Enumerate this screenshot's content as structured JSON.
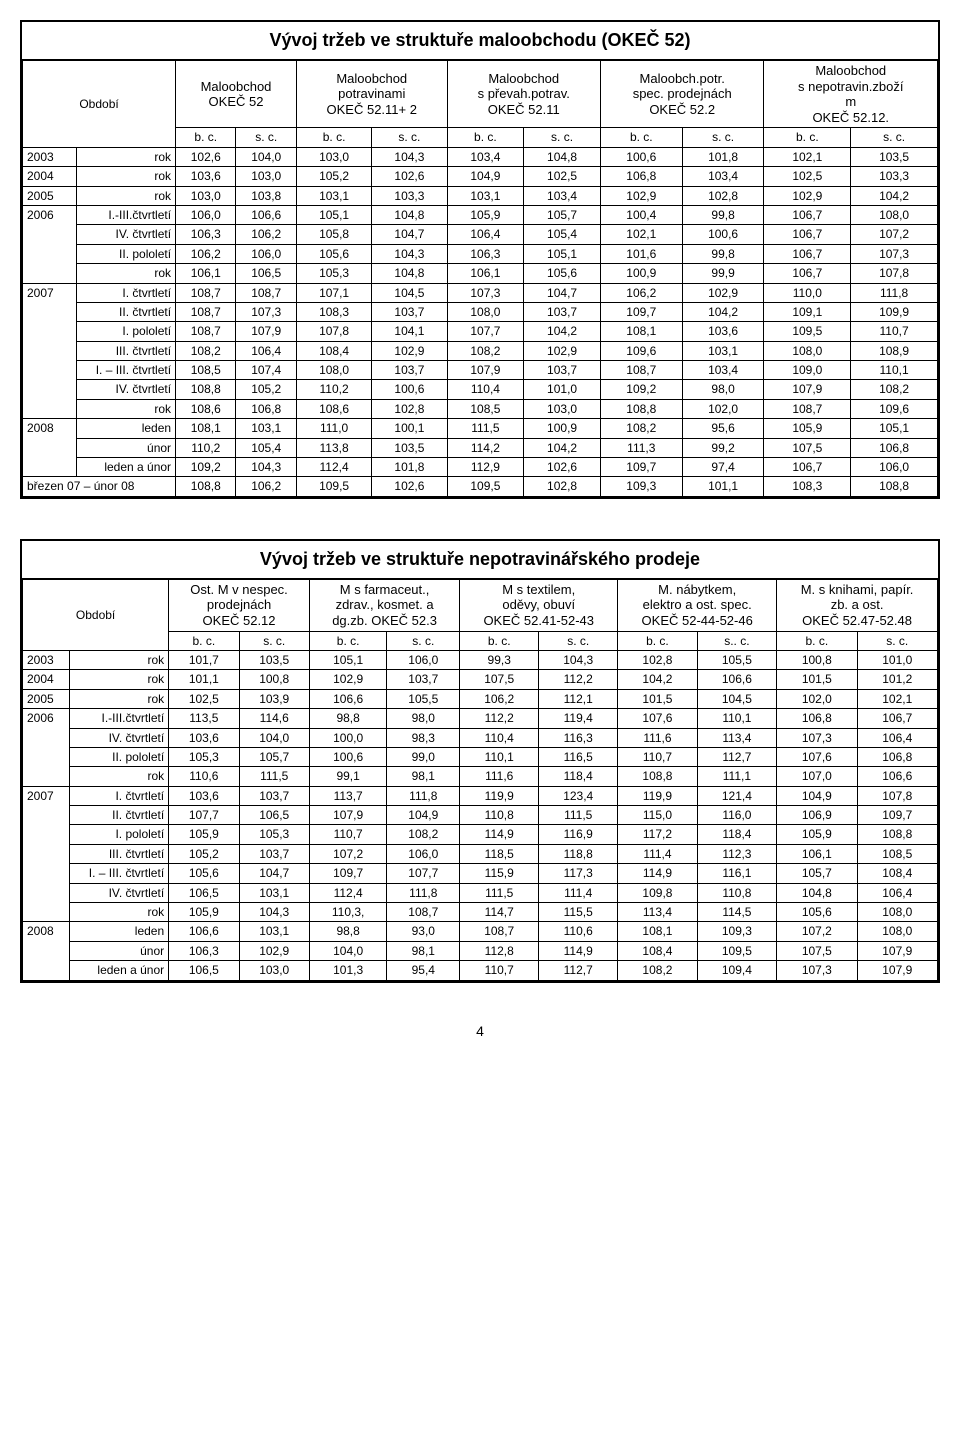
{
  "table1": {
    "title": "Vývoj tržeb ve struktuře maloobchodu (OKEČ 52)",
    "period_label": "Období",
    "groups": [
      {
        "l1": "Maloobchod",
        "l2": "OKEČ 52",
        "l3": ""
      },
      {
        "l1": "Maloobchod",
        "l2": "potravinami",
        "l3": "OKEČ 52.11+ 2"
      },
      {
        "l1": "Maloobchod",
        "l2": "s převah.potrav.",
        "l3": "OKEČ 52.11"
      },
      {
        "l1": "Maloobch.potr.",
        "l2": "spec. prodejnách",
        "l3": "OKEČ 52.2"
      },
      {
        "l1": "Maloobchod",
        "l2": "s nepotravin.zboží",
        "l3": "m",
        "l4": "OKEČ 52.12."
      }
    ],
    "subcols": [
      "b. c.",
      "s. c.",
      "b. c.",
      "s. c.",
      "b. c.",
      "s. c.",
      "b. c.",
      "s. c.",
      "b. c.",
      "s. c."
    ],
    "rows": [
      {
        "p": "2003",
        "s": "rok",
        "v": [
          "102,6",
          "104,0",
          "103,0",
          "104,3",
          "103,4",
          "104,8",
          "100,6",
          "101,8",
          "102,1",
          "103,5"
        ]
      },
      {
        "p": "2004",
        "s": "rok",
        "v": [
          "103,6",
          "103,0",
          "105,2",
          "102,6",
          "104,9",
          "102,5",
          "106,8",
          "103,4",
          "102,5",
          "103,3"
        ]
      },
      {
        "p": "2005",
        "s": "rok",
        "v": [
          "103,0",
          "103,8",
          "103,1",
          "103,3",
          "103,1",
          "103,4",
          "102,9",
          "102,8",
          "102,9",
          "104,2"
        ]
      },
      {
        "p": "2006",
        "s": "I.-III.čtvrtletí",
        "v": [
          "106,0",
          "106,6",
          "105,1",
          "104,8",
          "105,9",
          "105,7",
          "100,4",
          "99,8",
          "106,7",
          "108,0"
        ],
        "span": 4
      },
      {
        "p": "",
        "s": "IV. čtvrtletí",
        "v": [
          "106,3",
          "106,2",
          "105,8",
          "104,7",
          "106,4",
          "105,4",
          "102,1",
          "100,6",
          "106,7",
          "107,2"
        ]
      },
      {
        "p": "",
        "s": "II. pololetí",
        "v": [
          "106,2",
          "106,0",
          "105,6",
          "104,3",
          "106,3",
          "105,1",
          "101,6",
          "99,8",
          "106,7",
          "107,3"
        ]
      },
      {
        "p": "",
        "s": "rok",
        "v": [
          "106,1",
          "106,5",
          "105,3",
          "104,8",
          "106,1",
          "105,6",
          "100,9",
          "99,9",
          "106,7",
          "107,8"
        ]
      },
      {
        "p": "2007",
        "s": "I. čtvrtletí",
        "v": [
          "108,7",
          "108,7",
          "107,1",
          "104,5",
          "107,3",
          "104,7",
          "106,2",
          "102,9",
          "110,0",
          "111,8"
        ],
        "span": 7
      },
      {
        "p": "",
        "s": "II. čtvrtletí",
        "v": [
          "108,7",
          "107,3",
          "108,3",
          "103,7",
          "108,0",
          "103,7",
          "109,7",
          "104,2",
          "109,1",
          "109,9"
        ]
      },
      {
        "p": "",
        "s": "I. pololetí",
        "v": [
          "108,7",
          "107,9",
          "107,8",
          "104,1",
          "107,7",
          "104,2",
          "108,1",
          "103,6",
          "109,5",
          "110,7"
        ]
      },
      {
        "p": "",
        "s": "III. čtvrtletí",
        "v": [
          "108,2",
          "106,4",
          "108,4",
          "102,9",
          "108,2",
          "102,9",
          "109,6",
          "103,1",
          "108,0",
          "108,9"
        ]
      },
      {
        "p": "",
        "s": "I. – III. čtvrtletí",
        "v": [
          "108,5",
          "107,4",
          "108,0",
          "103,7",
          "107,9",
          "103,7",
          "108,7",
          "103,4",
          "109,0",
          "110,1"
        ]
      },
      {
        "p": "",
        "s": "IV. čtvrtletí",
        "v": [
          "108,8",
          "105,2",
          "110,2",
          "100,6",
          "110,4",
          "101,0",
          "109,2",
          "98,0",
          "107,9",
          "108,2"
        ]
      },
      {
        "p": "",
        "s": "rok",
        "v": [
          "108,6",
          "106,8",
          "108,6",
          "102,8",
          "108,5",
          "103,0",
          "108,8",
          "102,0",
          "108,7",
          "109,6"
        ]
      },
      {
        "p": "2008",
        "s": "leden",
        "v": [
          "108,1",
          "103,1",
          "111,0",
          "100,1",
          "111,5",
          "100,9",
          "108,2",
          "95,6",
          "105,9",
          "105,1"
        ],
        "span": 3
      },
      {
        "p": "",
        "s": "únor",
        "v": [
          "110,2",
          "105,4",
          "113,8",
          "103,5",
          "114,2",
          "104,2",
          "111,3",
          "99,2",
          "107,5",
          "106,8"
        ]
      },
      {
        "p": "",
        "s": "leden a únor",
        "v": [
          "109,2",
          "104,3",
          "112,4",
          "101,8",
          "112,9",
          "102,6",
          "109,7",
          "97,4",
          "106,7",
          "106,0"
        ]
      },
      {
        "p": "březen 07 – únor 08",
        "s": "",
        "v": [
          "108,8",
          "106,2",
          "109,5",
          "102,6",
          "109,5",
          "102,8",
          "109,3",
          "101,1",
          "108,3",
          "108,8"
        ],
        "merge": true
      }
    ]
  },
  "table2": {
    "title": "Vývoj tržeb ve struktuře nepotravinářského prodeje",
    "period_label": "Období",
    "groups": [
      {
        "l1": "Ost. M v nespec.",
        "l2": "prodejnách",
        "l3": "OKEČ 52.12"
      },
      {
        "l1": "M s farmaceut.,",
        "l2": "zdrav., kosmet. a",
        "l3": "dg.zb. OKEČ 52.3"
      },
      {
        "l1": "M s textilem,",
        "l2": "oděvy, obuví",
        "l3": "OKEČ 52.41-52-43"
      },
      {
        "l1": "M. nábytkem,",
        "l2": "elektro a ost. spec.",
        "l3": "OKEČ 52-44-52-46"
      },
      {
        "l1": "M. s knihami, papír.",
        "l2": "zb. a ost.",
        "l3": "OKEČ 52.47-52.48"
      }
    ],
    "subcols": [
      "b. c.",
      "s. c.",
      "b. c.",
      "s. c.",
      "b. c.",
      "s. c.",
      "b. c.",
      "s.. c.",
      "b. c.",
      "s. c."
    ],
    "rows": [
      {
        "p": "2003",
        "s": "rok",
        "v": [
          "101,7",
          "103,5",
          "105,1",
          "106,0",
          "99,3",
          "104,3",
          "102,8",
          "105,5",
          "100,8",
          "101,0"
        ]
      },
      {
        "p": "2004",
        "s": "rok",
        "v": [
          "101,1",
          "100,8",
          "102,9",
          "103,7",
          "107,5",
          "112,2",
          "104,2",
          "106,6",
          "101,5",
          "101,2"
        ]
      },
      {
        "p": "2005",
        "s": "rok",
        "v": [
          "102,5",
          "103,9",
          "106,6",
          "105,5",
          "106,2",
          "112,1",
          "101,5",
          "104,5",
          "102,0",
          "102,1"
        ]
      },
      {
        "p": "2006",
        "s": "I.-III.čtvrtletí",
        "v": [
          "113,5",
          "114,6",
          "98,8",
          "98,0",
          "112,2",
          "119,4",
          "107,6",
          "110,1",
          "106,8",
          "106,7"
        ],
        "span": 4
      },
      {
        "p": "",
        "s": "IV. čtvrtletí",
        "v": [
          "103,6",
          "104,0",
          "100,0",
          "98,3",
          "110,4",
          "116,3",
          "111,6",
          "113,4",
          "107,3",
          "106,4"
        ]
      },
      {
        "p": "",
        "s": "II. pololetí",
        "v": [
          "105,3",
          "105,7",
          "100,6",
          "99,0",
          "110,1",
          "116,5",
          "110,7",
          "112,7",
          "107,6",
          "106,8"
        ]
      },
      {
        "p": "",
        "s": "rok",
        "v": [
          "110,6",
          "111,5",
          "99,1",
          "98,1",
          "111,6",
          "118,4",
          "108,8",
          "111,1",
          "107,0",
          "106,6"
        ]
      },
      {
        "p": "2007",
        "s": "I. čtvrtletí",
        "v": [
          "103,6",
          "103,7",
          "113,7",
          "111,8",
          "119,9",
          "123,4",
          "119,9",
          "121,4",
          "104,9",
          "107,8"
        ],
        "span": 7
      },
      {
        "p": "",
        "s": "II. čtvrtletí",
        "v": [
          "107,7",
          "106,5",
          "107,9",
          "104,9",
          "110,8",
          "111,5",
          "115,0",
          "116,0",
          "106,9",
          "109,7"
        ]
      },
      {
        "p": "",
        "s": "I. pololetí",
        "v": [
          "105,9",
          "105,3",
          "110,7",
          "108,2",
          "114,9",
          "116,9",
          "117,2",
          "118,4",
          "105,9",
          "108,8"
        ]
      },
      {
        "p": "",
        "s": "III. čtvrtletí",
        "v": [
          "105,2",
          "103,7",
          "107,2",
          "106,0",
          "118,5",
          "118,8",
          "111,4",
          "112,3",
          "106,1",
          "108,5"
        ]
      },
      {
        "p": "",
        "s": "I. – III. čtvrtletí",
        "v": [
          "105,6",
          "104,7",
          "109,7",
          "107,7",
          "115,9",
          "117,3",
          "114,9",
          "116,1",
          "105,7",
          "108,4"
        ]
      },
      {
        "p": "",
        "s": "IV. čtvrtletí",
        "v": [
          "106,5",
          "103,1",
          "112,4",
          "111,8",
          "111,5",
          "111,4",
          "109,8",
          "110,8",
          "104,8",
          "106,4"
        ]
      },
      {
        "p": "",
        "s": "rok",
        "v": [
          "105,9",
          "104,3",
          "110,3,",
          "108,7",
          "114,7",
          "115,5",
          "113,4",
          "114,5",
          "105,6",
          "108,0"
        ]
      },
      {
        "p": "2008",
        "s": "leden",
        "v": [
          "106,6",
          "103,1",
          "98,8",
          "93,0",
          "108,7",
          "110,6",
          "108,1",
          "109,3",
          "107,2",
          "108,0"
        ],
        "span": 3
      },
      {
        "p": "",
        "s": "únor",
        "v": [
          "106,3",
          "102,9",
          "104,0",
          "98,1",
          "112,8",
          "114,9",
          "108,4",
          "109,5",
          "107,5",
          "107,9"
        ]
      },
      {
        "p": "",
        "s": "leden a únor",
        "v": [
          "106,5",
          "103,0",
          "101,3",
          "95,4",
          "110,7",
          "112,7",
          "108,2",
          "109,4",
          "107,3",
          "107,9"
        ]
      }
    ]
  },
  "page_number": "4"
}
